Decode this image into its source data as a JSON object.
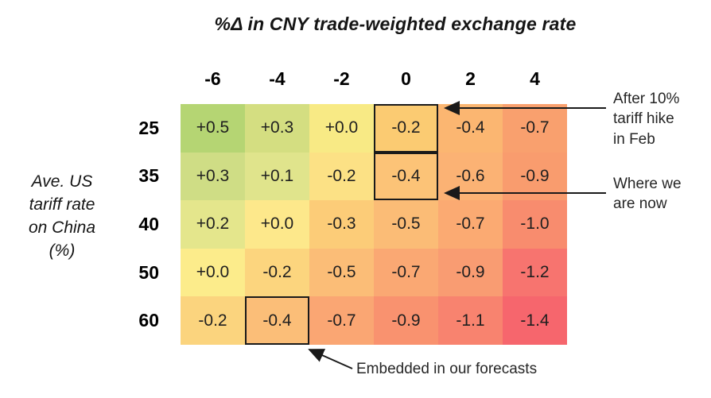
{
  "title": "%Δ in CNY trade-weighted exchange rate",
  "y_axis_label": "Ave. US\ntariff rate\non China\n(%)",
  "chart_data": {
    "type": "heatmap",
    "title": "%Δ in CNY trade-weighted exchange rate",
    "x_axis_title": "%Δ in CNY trade-weighted exchange rate",
    "y_axis_title": "Ave. US tariff rate on China (%)",
    "x_categories": [
      "-6",
      "-4",
      "-2",
      "0",
      "2",
      "4"
    ],
    "y_categories": [
      "25",
      "35",
      "40",
      "50",
      "60"
    ],
    "values": [
      [
        "+0.5",
        "+0.3",
        "+0.0",
        "-0.2",
        "-0.4",
        "-0.7"
      ],
      [
        "+0.3",
        "+0.1",
        "-0.2",
        "-0.4",
        "-0.6",
        "-0.9"
      ],
      [
        "+0.2",
        "+0.0",
        "-0.3",
        "-0.5",
        "-0.7",
        "-1.0"
      ],
      [
        "+0.0",
        "-0.2",
        "-0.5",
        "-0.7",
        "-0.9",
        "-1.2"
      ],
      [
        "-0.2",
        "-0.4",
        "-0.7",
        "-0.9",
        "-1.1",
        "-1.4"
      ]
    ],
    "cell_colors": [
      [
        "#b5d573",
        "#d4de81",
        "#f8ea85",
        "#fbcb72",
        "#fbb671",
        "#f9a06e"
      ],
      [
        "#cfdd85",
        "#e0e48c",
        "#fce185",
        "#fcc377",
        "#fbb274",
        "#f99c6e"
      ],
      [
        "#e4e68c",
        "#fde88b",
        "#fccc78",
        "#fbbc76",
        "#fbaa72",
        "#f88c6e"
      ],
      [
        "#fcec8b",
        "#fcd57e",
        "#fbbd77",
        "#faa873",
        "#f99c72",
        "#f7746f"
      ],
      [
        "#fbd47e",
        "#fbbe78",
        "#faa673",
        "#f9926f",
        "#f8836f",
        "#f6666d"
      ]
    ],
    "colormap": {
      "positive_end": "#b5d573",
      "mid": "#ffeb84",
      "negative_end": "#f6666d"
    },
    "highlighted_cells": [
      {
        "row": 0,
        "col": 3,
        "value": "-0.2",
        "note": "After 10% tariff hike in Feb"
      },
      {
        "row": 1,
        "col": 3,
        "value": "-0.4",
        "note": "Where we are now"
      },
      {
        "row": 4,
        "col": 1,
        "value": "-0.4",
        "note": "Embedded in our forecasts"
      }
    ],
    "annotations": [
      {
        "text": "After 10%\ntariff hike\nin Feb"
      },
      {
        "text": "Where we\nare now"
      },
      {
        "text": "Embedded in our forecasts"
      }
    ]
  },
  "annotations": {
    "after_hike": "After 10%\ntariff hike\nin Feb",
    "where_now": "Where we\nare now",
    "embedded": "Embedded in our forecasts"
  }
}
